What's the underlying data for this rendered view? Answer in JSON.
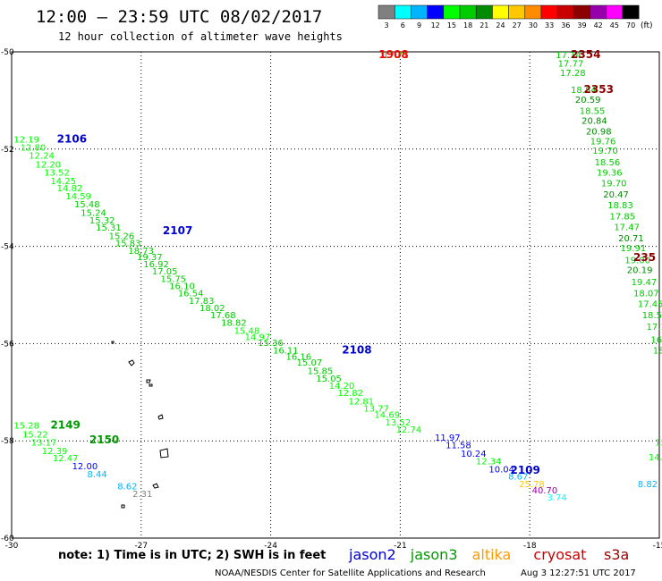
{
  "chart_data": {
    "type": "scatter",
    "title": "12:00 – 23:59 UTC 08/02/2017",
    "subtitle": "12 hour collection of altimeter wave heights",
    "units_label": "(ft)",
    "color_scale": {
      "ticks": [
        "3",
        "6",
        "9",
        "12",
        "15",
        "18",
        "21",
        "24",
        "27",
        "30",
        "33",
        "36",
        "39",
        "42",
        "45",
        "70"
      ],
      "colors": [
        "#808080",
        "#00ffff",
        "#00b4ff",
        "#0000ff",
        "#00ff00",
        "#00cc00",
        "#008c00",
        "#ffff00",
        "#ffc800",
        "#ff8c00",
        "#ff0000",
        "#c80000",
        "#8c0000",
        "#9600aa",
        "#ff00ff",
        "#000000"
      ]
    },
    "x_axis": {
      "min": -30,
      "max": -15,
      "ticks": [
        -30,
        -27,
        -24,
        -21,
        -18,
        -15
      ],
      "tick_labels": [
        "-30",
        "-27",
        "-24",
        "-21",
        "-18",
        "-15"
      ]
    },
    "y_axis": {
      "min": -60,
      "max": -50,
      "ticks": [
        -50,
        -52,
        -54,
        -56,
        -58,
        -60
      ],
      "tick_labels": [
        "-50",
        "-52",
        "-54",
        "-56",
        "-58",
        "-60"
      ]
    },
    "grid": true,
    "legend": {
      "note": "note: 1) Time is in UTC; 2) SWH is in feet",
      "entries": [
        {
          "name": "jason2",
          "color": "#0000cc"
        },
        {
          "name": "jason3",
          "color": "#009900"
        },
        {
          "name": "altika",
          "color": "#ff9900"
        },
        {
          "name": "cryosat",
          "color": "#cc0000"
        },
        {
          "name": "s3a",
          "color": "#990000"
        }
      ]
    },
    "footer": {
      "credit": "NOAA/NESDIS Center for Satellite Applications and Research",
      "timestamp": "Aug  3 12:27:51 UTC 2017"
    },
    "pass_labels": [
      {
        "text": "1908",
        "x": -21.5,
        "y": -50.13,
        "color": "#ff0000"
      },
      {
        "text": "2354",
        "x": -17.05,
        "y": -50.13,
        "color": "#8c0000"
      },
      {
        "text": "2353",
        "x": -16.75,
        "y": -50.85,
        "color": "#8c0000"
      },
      {
        "text": "2106",
        "x": -28.95,
        "y": -51.87,
        "color": "#0000cc"
      },
      {
        "text": "2107",
        "x": -26.5,
        "y": -53.75,
        "color": "#0000cc"
      },
      {
        "text": "2108",
        "x": -22.35,
        "y": -56.2,
        "color": "#0000cc"
      },
      {
        "text": "2149",
        "x": -29.1,
        "y": -57.75,
        "color": "#009900"
      },
      {
        "text": "2150",
        "x": -28.2,
        "y": -58.05,
        "color": "#009900"
      },
      {
        "text": "2109",
        "x": -18.45,
        "y": -58.68,
        "color": "#0000cc"
      },
      {
        "text": "235",
        "x": -15.6,
        "y": -54.3,
        "color": "#8c0000"
      }
    ],
    "points": [
      {
        "text": "17.71",
        "x": -21.4,
        "y": -50.13,
        "color": "#00cc00"
      },
      {
        "text": "17.14",
        "x": -17.4,
        "y": -50.13,
        "color": "#00cc00"
      },
      {
        "text": "17.77",
        "x": -17.35,
        "y": -50.3,
        "color": "#00cc00"
      },
      {
        "text": "17.28",
        "x": -17.3,
        "y": -50.5,
        "color": "#00cc00"
      },
      {
        "text": "18.84",
        "x": -17.05,
        "y": -50.85,
        "color": "#00cc00"
      },
      {
        "text": "20.59",
        "x": -16.95,
        "y": -51.05,
        "color": "#008c00"
      },
      {
        "text": "18.55",
        "x": -16.85,
        "y": -51.28,
        "color": "#00cc00"
      },
      {
        "text": "20.84",
        "x": -16.8,
        "y": -51.48,
        "color": "#008c00"
      },
      {
        "text": "20.98",
        "x": -16.7,
        "y": -51.7,
        "color": "#008c00"
      },
      {
        "text": "19.76",
        "x": -16.6,
        "y": -51.9,
        "color": "#00cc00"
      },
      {
        "text": "19.70",
        "x": -16.55,
        "y": -52.1,
        "color": "#00cc00"
      },
      {
        "text": "18.56",
        "x": -16.5,
        "y": -52.33,
        "color": "#00cc00"
      },
      {
        "text": "19.36",
        "x": -16.45,
        "y": -52.55,
        "color": "#00cc00"
      },
      {
        "text": "19.70",
        "x": -16.35,
        "y": -52.77,
        "color": "#00cc00"
      },
      {
        "text": "20.47",
        "x": -16.3,
        "y": -53.0,
        "color": "#008c00"
      },
      {
        "text": "18.83",
        "x": -16.2,
        "y": -53.22,
        "color": "#00cc00"
      },
      {
        "text": "17.85",
        "x": -16.15,
        "y": -53.45,
        "color": "#00cc00"
      },
      {
        "text": "17.47",
        "x": -16.05,
        "y": -53.67,
        "color": "#00cc00"
      },
      {
        "text": "20.71",
        "x": -15.95,
        "y": -53.9,
        "color": "#008c00"
      },
      {
        "text": "19.91",
        "x": -15.9,
        "y": -54.1,
        "color": "#00cc00"
      },
      {
        "text": "19.00",
        "x": -15.8,
        "y": -54.35,
        "color": "#00cc00"
      },
      {
        "text": "20.19",
        "x": -15.75,
        "y": -54.55,
        "color": "#008c00"
      },
      {
        "text": "19.47",
        "x": -15.65,
        "y": -54.8,
        "color": "#00cc00"
      },
      {
        "text": "18.07",
        "x": -15.6,
        "y": -55.03,
        "color": "#00cc00"
      },
      {
        "text": "17.45",
        "x": -15.5,
        "y": -55.25,
        "color": "#00cc00"
      },
      {
        "text": "18.58",
        "x": -15.4,
        "y": -55.48,
        "color": "#00cc00"
      },
      {
        "text": "17.1",
        "x": -15.3,
        "y": -55.72,
        "color": "#00cc00"
      },
      {
        "text": "16.",
        "x": -15.2,
        "y": -55.98,
        "color": "#00cc00"
      },
      {
        "text": "18",
        "x": -15.15,
        "y": -56.2,
        "color": "#00cc00"
      },
      {
        "text": "15",
        "x": -15.1,
        "y": -58.1,
        "color": "#00ff00"
      },
      {
        "text": "14.",
        "x": -15.25,
        "y": -58.4,
        "color": "#00ff00"
      },
      {
        "text": "8.82",
        "x": -15.5,
        "y": -58.95,
        "color": "#00b4ff"
      },
      {
        "text": "12.19",
        "x": -29.95,
        "y": -51.87,
        "color": "#00ff00"
      },
      {
        "text": "12.80",
        "x": -29.8,
        "y": -52.03,
        "color": "#00ff00"
      },
      {
        "text": "12.24",
        "x": -29.6,
        "y": -52.2,
        "color": "#00ff00"
      },
      {
        "text": "12.20",
        "x": -29.45,
        "y": -52.38,
        "color": "#00ff00"
      },
      {
        "text": "13.52",
        "x": -29.25,
        "y": -52.55,
        "color": "#00ff00"
      },
      {
        "text": "14.25",
        "x": -29.1,
        "y": -52.72,
        "color": "#00ff00"
      },
      {
        "text": "14.82",
        "x": -28.95,
        "y": -52.87,
        "color": "#00ff00"
      },
      {
        "text": "14.59",
        "x": -28.75,
        "y": -53.03,
        "color": "#00ff00"
      },
      {
        "text": "15.48",
        "x": -28.55,
        "y": -53.2,
        "color": "#00cc00"
      },
      {
        "text": "15.24",
        "x": -28.4,
        "y": -53.37,
        "color": "#00cc00"
      },
      {
        "text": "15.32",
        "x": -28.2,
        "y": -53.53,
        "color": "#00cc00"
      },
      {
        "text": "15.31",
        "x": -28.05,
        "y": -53.68,
        "color": "#00cc00"
      },
      {
        "text": "15.26",
        "x": -27.75,
        "y": -53.85,
        "color": "#00cc00"
      },
      {
        "text": "15.83",
        "x": -27.6,
        "y": -54.0,
        "color": "#00cc00"
      },
      {
        "text": "18.73",
        "x": -27.3,
        "y": -54.15,
        "color": "#00cc00"
      },
      {
        "text": "19.37",
        "x": -27.1,
        "y": -54.28,
        "color": "#00cc00"
      },
      {
        "text": "16.92",
        "x": -26.95,
        "y": -54.43,
        "color": "#00cc00"
      },
      {
        "text": "17.05",
        "x": -26.75,
        "y": -54.58,
        "color": "#00cc00"
      },
      {
        "text": "15.75",
        "x": -26.55,
        "y": -54.73,
        "color": "#00cc00"
      },
      {
        "text": "16.10",
        "x": -26.35,
        "y": -54.88,
        "color": "#00cc00"
      },
      {
        "text": "16.54",
        "x": -26.15,
        "y": -55.03,
        "color": "#00cc00"
      },
      {
        "text": "17.83",
        "x": -25.9,
        "y": -55.18,
        "color": "#00cc00"
      },
      {
        "text": "18.02",
        "x": -25.65,
        "y": -55.33,
        "color": "#00cc00"
      },
      {
        "text": "17.68",
        "x": -25.4,
        "y": -55.48,
        "color": "#00cc00"
      },
      {
        "text": "18.82",
        "x": -25.15,
        "y": -55.63,
        "color": "#00cc00"
      },
      {
        "text": "15.48",
        "x": -24.85,
        "y": -55.8,
        "color": "#00ff00"
      },
      {
        "text": "14.97",
        "x": -24.6,
        "y": -55.93,
        "color": "#00ff00"
      },
      {
        "text": "15.36",
        "x": -24.3,
        "y": -56.05,
        "color": "#00cc00"
      },
      {
        "text": "16.11",
        "x": -23.95,
        "y": -56.2,
        "color": "#00cc00"
      },
      {
        "text": "16.16",
        "x": -23.65,
        "y": -56.33,
        "color": "#00cc00"
      },
      {
        "text": "15.07",
        "x": -23.4,
        "y": -56.45,
        "color": "#00cc00"
      },
      {
        "text": "15.85",
        "x": -23.15,
        "y": -56.63,
        "color": "#00cc00"
      },
      {
        "text": "15.05",
        "x": -22.95,
        "y": -56.78,
        "color": "#00cc00"
      },
      {
        "text": "14.20",
        "x": -22.65,
        "y": -56.93,
        "color": "#00ff00"
      },
      {
        "text": "12.82",
        "x": -22.45,
        "y": -57.08,
        "color": "#00ff00"
      },
      {
        "text": "12.81",
        "x": -22.2,
        "y": -57.25,
        "color": "#00ff00"
      },
      {
        "text": "13.77",
        "x": -21.85,
        "y": -57.4,
        "color": "#00ff00"
      },
      {
        "text": "14.69",
        "x": -21.6,
        "y": -57.53,
        "color": "#00ff00"
      },
      {
        "text": "13.52",
        "x": -21.35,
        "y": -57.68,
        "color": "#00ff00"
      },
      {
        "text": "12.74",
        "x": -21.1,
        "y": -57.83,
        "color": "#00ff00"
      },
      {
        "text": "11.97",
        "x": -20.2,
        "y": -58.0,
        "color": "#0000ff"
      },
      {
        "text": "11.58",
        "x": -19.95,
        "y": -58.15,
        "color": "#0000ff"
      },
      {
        "text": "10.24",
        "x": -19.6,
        "y": -58.33,
        "color": "#0000ff"
      },
      {
        "text": "12.34",
        "x": -19.25,
        "y": -58.48,
        "color": "#00ff00"
      },
      {
        "text": "10.04",
        "x": -18.95,
        "y": -58.65,
        "color": "#0000ff"
      },
      {
        "text": "8.67",
        "x": -18.5,
        "y": -58.8,
        "color": "#00b4ff"
      },
      {
        "text": "25.78",
        "x": -18.25,
        "y": -58.95,
        "color": "#ffc800"
      },
      {
        "text": "40.70",
        "x": -17.95,
        "y": -59.08,
        "color": "#9600aa"
      },
      {
        "text": "3.74",
        "x": -17.6,
        "y": -59.23,
        "color": "#00ffff"
      },
      {
        "text": "15.28",
        "x": -29.95,
        "y": -57.75,
        "color": "#00ff00"
      },
      {
        "text": "15.22",
        "x": -29.75,
        "y": -57.93,
        "color": "#00ff00"
      },
      {
        "text": "13.17",
        "x": -29.55,
        "y": -58.1,
        "color": "#00ff00"
      },
      {
        "text": "12.39",
        "x": -29.3,
        "y": -58.27,
        "color": "#00ff00"
      },
      {
        "text": "12.47",
        "x": -29.05,
        "y": -58.42,
        "color": "#00ff00"
      },
      {
        "text": "12.00",
        "x": -28.6,
        "y": -58.58,
        "color": "#0000ff"
      },
      {
        "text": "8.44",
        "x": -28.25,
        "y": -58.75,
        "color": "#00b4ff"
      },
      {
        "text": "8.62",
        "x": -27.55,
        "y": -59.0,
        "color": "#00b4ff"
      },
      {
        "text": "2.31",
        "x": -27.2,
        "y": -59.15,
        "color": "#808080"
      }
    ]
  }
}
